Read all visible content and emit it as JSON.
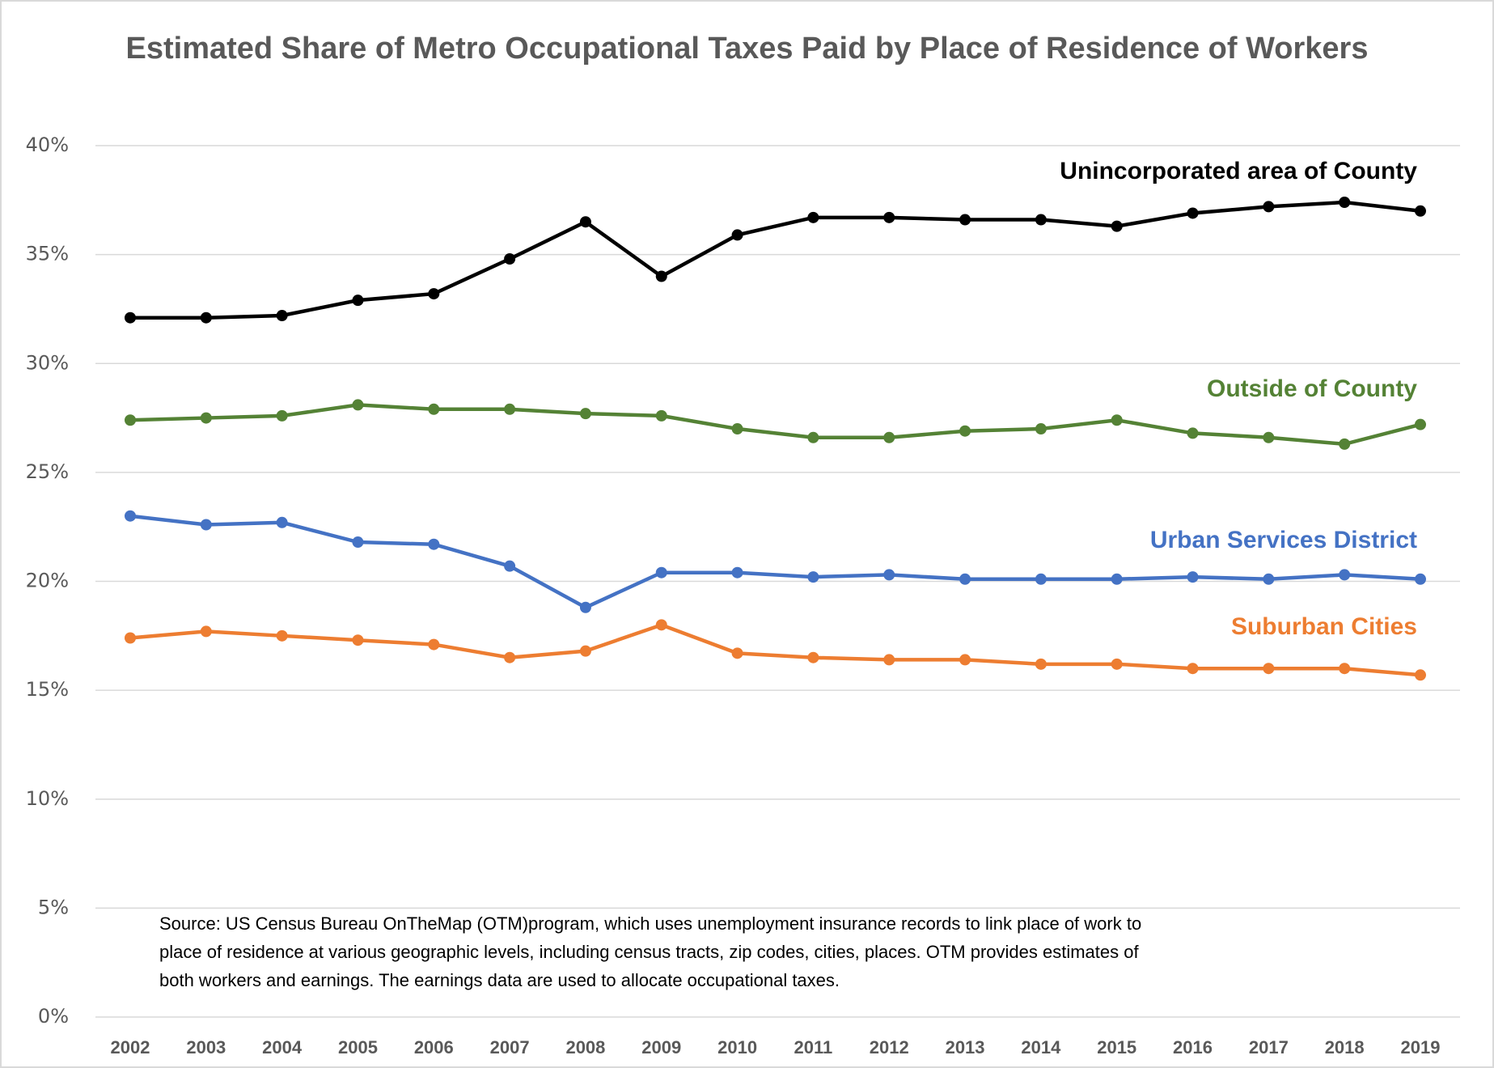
{
  "chart_data": {
    "type": "line",
    "title": "Estimated Share of Metro Occupational Taxes Paid by Place of Residence of Workers",
    "categories": [
      "2002",
      "2003",
      "2004",
      "2005",
      "2006",
      "2007",
      "2008",
      "2009",
      "2010",
      "2011",
      "2012",
      "2013",
      "2014",
      "2015",
      "2016",
      "2017",
      "2018",
      "2019"
    ],
    "series": [
      {
        "name": "Unincorporated area of County",
        "color": "#000000",
        "values": [
          32.1,
          32.1,
          32.2,
          32.9,
          33.2,
          34.8,
          36.5,
          34.0,
          35.9,
          36.7,
          36.7,
          36.6,
          36.6,
          36.3,
          36.9,
          37.2,
          37.4,
          37.0
        ]
      },
      {
        "name": "Outside of County",
        "color": "#548235",
        "values": [
          27.4,
          27.5,
          27.6,
          28.1,
          27.9,
          27.9,
          27.7,
          27.6,
          27.0,
          26.6,
          26.6,
          26.9,
          27.0,
          27.4,
          26.8,
          26.6,
          26.3,
          27.2
        ]
      },
      {
        "name": "Urban Services District",
        "color": "#4472c4",
        "values": [
          23.0,
          22.6,
          22.7,
          21.8,
          21.7,
          20.7,
          18.8,
          20.4,
          20.4,
          20.2,
          20.3,
          20.1,
          20.1,
          20.1,
          20.2,
          20.1,
          20.3,
          20.1
        ]
      },
      {
        "name": "Suburban Cities",
        "color": "#ed7d31",
        "values": [
          17.4,
          17.7,
          17.5,
          17.3,
          17.1,
          16.5,
          16.8,
          18.0,
          16.7,
          16.5,
          16.4,
          16.4,
          16.2,
          16.2,
          16.0,
          16.0,
          16.0,
          15.7
        ]
      }
    ],
    "ylim": [
      0,
      40
    ],
    "yticks": [
      {
        "value": 0,
        "label": "0%"
      },
      {
        "value": 5,
        "label": "5%"
      },
      {
        "value": 10,
        "label": "10%"
      },
      {
        "value": 15,
        "label": "15%"
      },
      {
        "value": 20,
        "label": "20%"
      },
      {
        "value": 25,
        "label": "25%"
      },
      {
        "value": 30,
        "label": "30%"
      },
      {
        "value": 35,
        "label": "35%"
      },
      {
        "value": 40,
        "label": "40%"
      }
    ],
    "grid": true,
    "source": [
      "Source: US Census Bureau OnTheMap (OTM)program, which uses unemployment insurance records to link place of work to",
      "place of residence at various geographic levels, including census tracts, zip codes, cities, places. OTM provides estimates of",
      "both workers and earnings. The earnings data are used to allocate occupational taxes."
    ]
  }
}
